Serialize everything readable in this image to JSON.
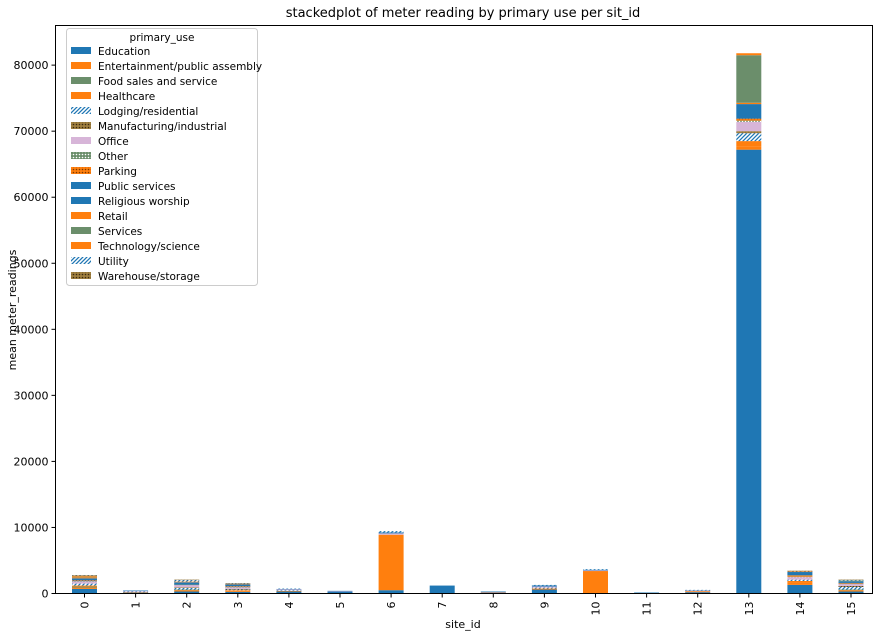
{
  "chart_data": {
    "type": "bar",
    "stacked": true,
    "title": "stackedplot of meter reading by primary use per sit_id",
    "xlabel": "site_id",
    "ylabel": "mean meter_readings",
    "ylim": [
      0,
      86000
    ],
    "yticks": [
      0,
      10000,
      20000,
      30000,
      40000,
      50000,
      60000,
      70000,
      80000
    ],
    "legend_title": "primary_use",
    "legend_position": "top-left",
    "grid": false,
    "categories": [
      "0",
      "1",
      "2",
      "3",
      "4",
      "5",
      "6",
      "7",
      "8",
      "9",
      "10",
      "11",
      "12",
      "13",
      "14",
      "15"
    ],
    "series": [
      {
        "name": "Education",
        "color": "#1f77b4",
        "pattern": "solid",
        "values": [
          700,
          150,
          300,
          250,
          300,
          250,
          500,
          1200,
          150,
          600,
          0,
          150,
          200,
          67200,
          1300,
          300
        ]
      },
      {
        "name": "Entertainment/public assembly",
        "color": "#ff7f0e",
        "pattern": "solid",
        "values": [
          200,
          50,
          200,
          150,
          100,
          0,
          8400,
          0,
          50,
          150,
          3400,
          0,
          150,
          500,
          300,
          200
        ]
      },
      {
        "name": "Food sales and service",
        "color": "#6b8e6b",
        "pattern": "solid",
        "values": [
          150,
          0,
          100,
          0,
          0,
          0,
          0,
          0,
          0,
          0,
          0,
          0,
          0,
          0,
          0,
          100
        ]
      },
      {
        "name": "Healthcare",
        "color": "#ff7f0e",
        "pattern": "solid",
        "values": [
          150,
          0,
          0,
          100,
          0,
          0,
          0,
          0,
          0,
          0,
          0,
          0,
          0,
          800,
          300,
          0
        ]
      },
      {
        "name": "Lodging/residential",
        "color": "#1f77b4",
        "pattern": "hatch",
        "values": [
          300,
          100,
          250,
          100,
          100,
          0,
          0,
          0,
          0,
          150,
          0,
          0,
          0,
          1200,
          200,
          400
        ]
      },
      {
        "name": "Manufacturing/industrial",
        "color": "#a08040",
        "pattern": "dots",
        "values": [
          0,
          0,
          100,
          100,
          0,
          0,
          0,
          0,
          0,
          0,
          0,
          0,
          0,
          300,
          0,
          150
        ]
      },
      {
        "name": "Office",
        "color": "#d7b5d8",
        "pattern": "solid",
        "values": [
          350,
          100,
          350,
          250,
          150,
          50,
          200,
          0,
          50,
          150,
          100,
          0,
          100,
          1400,
          400,
          300
        ]
      },
      {
        "name": "Other",
        "color": "#6b8e6b",
        "pattern": "dots",
        "values": [
          50,
          0,
          50,
          50,
          0,
          0,
          0,
          0,
          0,
          0,
          0,
          0,
          0,
          200,
          50,
          50
        ]
      },
      {
        "name": "Parking",
        "color": "#ff7f0e",
        "pattern": "dots",
        "values": [
          100,
          0,
          0,
          100,
          0,
          0,
          0,
          0,
          0,
          0,
          0,
          0,
          0,
          300,
          200,
          100
        ]
      },
      {
        "name": "Public services",
        "color": "#1f77b4",
        "pattern": "solid",
        "values": [
          300,
          50,
          300,
          300,
          50,
          100,
          150,
          0,
          50,
          200,
          100,
          0,
          50,
          2200,
          500,
          250
        ]
      },
      {
        "name": "Religious worship",
        "color": "#1f77b4",
        "pattern": "solid",
        "values": [
          0,
          0,
          50,
          0,
          0,
          0,
          0,
          0,
          0,
          0,
          0,
          0,
          0,
          0,
          0,
          0
        ]
      },
      {
        "name": "Retail",
        "color": "#ff7f0e",
        "pattern": "solid",
        "values": [
          150,
          0,
          100,
          50,
          0,
          0,
          0,
          0,
          0,
          0,
          0,
          0,
          0,
          200,
          100,
          0
        ]
      },
      {
        "name": "Services",
        "color": "#6b8e6b",
        "pattern": "solid",
        "values": [
          100,
          0,
          0,
          0,
          0,
          0,
          0,
          0,
          0,
          0,
          0,
          0,
          0,
          7200,
          0,
          100
        ]
      },
      {
        "name": "Technology/science",
        "color": "#ff7f0e",
        "pattern": "solid",
        "values": [
          150,
          0,
          0,
          0,
          0,
          0,
          0,
          0,
          0,
          0,
          0,
          0,
          0,
          300,
          0,
          0
        ]
      },
      {
        "name": "Utility",
        "color": "#1f77b4",
        "pattern": "hatch",
        "values": [
          50,
          0,
          250,
          50,
          50,
          0,
          200,
          0,
          0,
          50,
          100,
          0,
          50,
          0,
          50,
          100
        ]
      },
      {
        "name": "Warehouse/storage",
        "color": "#a08040",
        "pattern": "dots",
        "values": [
          50,
          0,
          50,
          50,
          0,
          0,
          0,
          0,
          0,
          0,
          0,
          0,
          0,
          0,
          50,
          50
        ]
      }
    ]
  }
}
